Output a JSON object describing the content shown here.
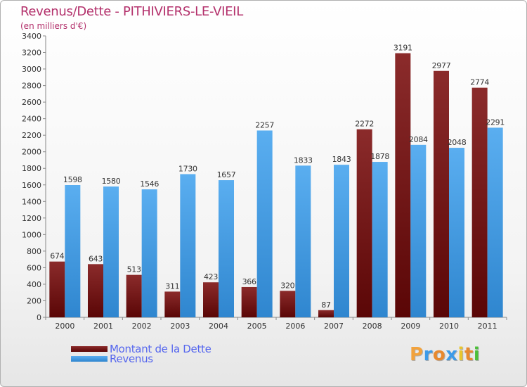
{
  "header": {
    "title": "Revenus/Dette - PITHIVIERS-LE-VIEIL",
    "subtitle": "(en milliers d'€)"
  },
  "legend": {
    "items": [
      {
        "label": "Montant de la Dette",
        "color": "#7a1a1a"
      },
      {
        "label": "Revenus",
        "color": "#3d9be8"
      }
    ]
  },
  "brand": {
    "letters": [
      {
        "char": "P",
        "color": "#f2a23c"
      },
      {
        "char": "r",
        "color": "#3d9be8"
      },
      {
        "char": "o",
        "color": "#e8892e"
      },
      {
        "char": "x",
        "color": "#3d9be8"
      },
      {
        "char": "i",
        "color": "#e8c62e"
      },
      {
        "char": "t",
        "color": "#e8892e"
      },
      {
        "char": "i",
        "color": "#4cbf3a"
      }
    ]
  },
  "chart_data": {
    "type": "bar",
    "title": "Revenus/Dette - PITHIVIERS-LE-VIEIL",
    "ylabel": "(en milliers d'€)",
    "xlabel": "",
    "categories": [
      "2000",
      "2001",
      "2002",
      "2003",
      "2004",
      "2005",
      "2006",
      "2007",
      "2008",
      "2009",
      "2010",
      "2011"
    ],
    "series": [
      {
        "name": "Montant de la Dette",
        "color_top": "#8b2b2b",
        "color_bottom": "#5a0606",
        "values": [
          674,
          643,
          513,
          311,
          423,
          366,
          320,
          87,
          2272,
          3191,
          2977,
          2774
        ]
      },
      {
        "name": "Revenus",
        "color_top": "#5aaef0",
        "color_bottom": "#2f86cf",
        "values": [
          1598,
          1580,
          1546,
          1730,
          1657,
          2257,
          1833,
          1843,
          1878,
          2084,
          2048,
          2291
        ]
      }
    ],
    "ylim": [
      0,
      3400
    ],
    "ytick_step": 200,
    "grid": false,
    "legend": "bottom-left"
  }
}
